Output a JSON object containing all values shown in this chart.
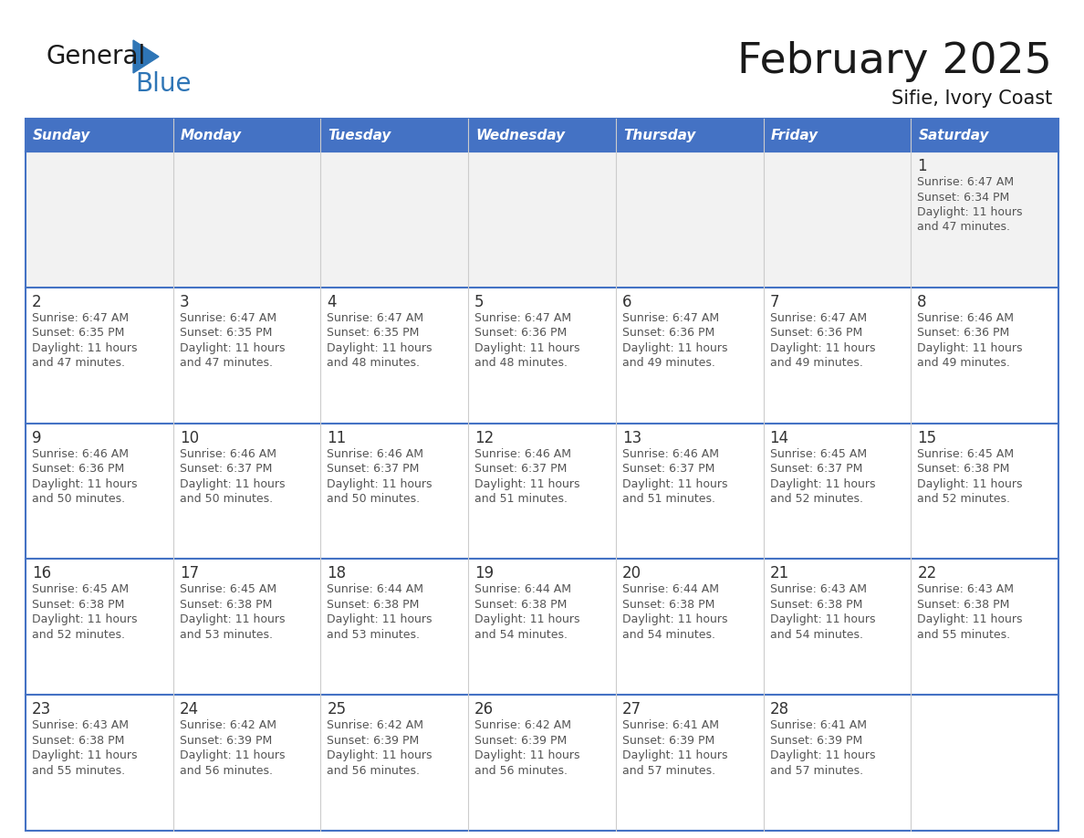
{
  "title": "February 2025",
  "subtitle": "Sifie, Ivory Coast",
  "days_of_week": [
    "Sunday",
    "Monday",
    "Tuesday",
    "Wednesday",
    "Thursday",
    "Friday",
    "Saturday"
  ],
  "header_bg": "#4472C4",
  "header_text": "#FFFFFF",
  "cell_bg_light": "#F2F2F2",
  "cell_bg_white": "#FFFFFF",
  "border_color": "#4472C4",
  "row_line_color": "#4472C4",
  "col_line_color": "#CCCCCC",
  "day_num_color": "#333333",
  "text_color": "#555555",
  "logo_general_color": "#1a1a1a",
  "logo_blue_color": "#2E75B6",
  "logo_triangle_color": "#2E75B6",
  "calendar_data": [
    [
      null,
      null,
      null,
      null,
      null,
      null,
      {
        "day": 1,
        "sunrise": "6:47 AM",
        "sunset": "6:34 PM",
        "daylight": "11 hours and 47 minutes"
      }
    ],
    [
      {
        "day": 2,
        "sunrise": "6:47 AM",
        "sunset": "6:35 PM",
        "daylight": "11 hours and 47 minutes"
      },
      {
        "day": 3,
        "sunrise": "6:47 AM",
        "sunset": "6:35 PM",
        "daylight": "11 hours and 47 minutes"
      },
      {
        "day": 4,
        "sunrise": "6:47 AM",
        "sunset": "6:35 PM",
        "daylight": "11 hours and 48 minutes"
      },
      {
        "day": 5,
        "sunrise": "6:47 AM",
        "sunset": "6:36 PM",
        "daylight": "11 hours and 48 minutes"
      },
      {
        "day": 6,
        "sunrise": "6:47 AM",
        "sunset": "6:36 PM",
        "daylight": "11 hours and 49 minutes"
      },
      {
        "day": 7,
        "sunrise": "6:47 AM",
        "sunset": "6:36 PM",
        "daylight": "11 hours and 49 minutes"
      },
      {
        "day": 8,
        "sunrise": "6:46 AM",
        "sunset": "6:36 PM",
        "daylight": "11 hours and 49 minutes"
      }
    ],
    [
      {
        "day": 9,
        "sunrise": "6:46 AM",
        "sunset": "6:36 PM",
        "daylight": "11 hours and 50 minutes"
      },
      {
        "day": 10,
        "sunrise": "6:46 AM",
        "sunset": "6:37 PM",
        "daylight": "11 hours and 50 minutes"
      },
      {
        "day": 11,
        "sunrise": "6:46 AM",
        "sunset": "6:37 PM",
        "daylight": "11 hours and 50 minutes"
      },
      {
        "day": 12,
        "sunrise": "6:46 AM",
        "sunset": "6:37 PM",
        "daylight": "11 hours and 51 minutes"
      },
      {
        "day": 13,
        "sunrise": "6:46 AM",
        "sunset": "6:37 PM",
        "daylight": "11 hours and 51 minutes"
      },
      {
        "day": 14,
        "sunrise": "6:45 AM",
        "sunset": "6:37 PM",
        "daylight": "11 hours and 52 minutes"
      },
      {
        "day": 15,
        "sunrise": "6:45 AM",
        "sunset": "6:38 PM",
        "daylight": "11 hours and 52 minutes"
      }
    ],
    [
      {
        "day": 16,
        "sunrise": "6:45 AM",
        "sunset": "6:38 PM",
        "daylight": "11 hours and 52 minutes"
      },
      {
        "day": 17,
        "sunrise": "6:45 AM",
        "sunset": "6:38 PM",
        "daylight": "11 hours and 53 minutes"
      },
      {
        "day": 18,
        "sunrise": "6:44 AM",
        "sunset": "6:38 PM",
        "daylight": "11 hours and 53 minutes"
      },
      {
        "day": 19,
        "sunrise": "6:44 AM",
        "sunset": "6:38 PM",
        "daylight": "11 hours and 54 minutes"
      },
      {
        "day": 20,
        "sunrise": "6:44 AM",
        "sunset": "6:38 PM",
        "daylight": "11 hours and 54 minutes"
      },
      {
        "day": 21,
        "sunrise": "6:43 AM",
        "sunset": "6:38 PM",
        "daylight": "11 hours and 54 minutes"
      },
      {
        "day": 22,
        "sunrise": "6:43 AM",
        "sunset": "6:38 PM",
        "daylight": "11 hours and 55 minutes"
      }
    ],
    [
      {
        "day": 23,
        "sunrise": "6:43 AM",
        "sunset": "6:38 PM",
        "daylight": "11 hours and 55 minutes"
      },
      {
        "day": 24,
        "sunrise": "6:42 AM",
        "sunset": "6:39 PM",
        "daylight": "11 hours and 56 minutes"
      },
      {
        "day": 25,
        "sunrise": "6:42 AM",
        "sunset": "6:39 PM",
        "daylight": "11 hours and 56 minutes"
      },
      {
        "day": 26,
        "sunrise": "6:42 AM",
        "sunset": "6:39 PM",
        "daylight": "11 hours and 56 minutes"
      },
      {
        "day": 27,
        "sunrise": "6:41 AM",
        "sunset": "6:39 PM",
        "daylight": "11 hours and 57 minutes"
      },
      {
        "day": 28,
        "sunrise": "6:41 AM",
        "sunset": "6:39 PM",
        "daylight": "11 hours and 57 minutes"
      },
      null
    ]
  ],
  "figsize": [
    11.88,
    9.18
  ],
  "dpi": 100
}
